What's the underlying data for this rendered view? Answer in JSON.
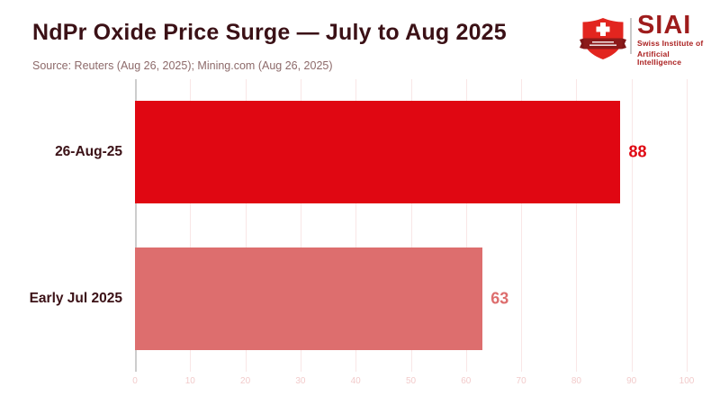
{
  "header": {
    "title": "NdPr Oxide Price Surge — July to Aug 2025",
    "source": "Source: Reuters (Aug 26, 2025); Mining.com (Aug 26, 2025)"
  },
  "logo": {
    "acronym": "SIAI",
    "subtitle_line1": "Swiss Institute of",
    "subtitle_line2": "Artificial Intelligence"
  },
  "chart_data": {
    "type": "bar",
    "orientation": "horizontal",
    "title": "NdPr Oxide Price Surge — July to Aug 2025",
    "categories": [
      "26-Aug-25",
      "Early Jul 2025"
    ],
    "values": [
      88,
      63
    ],
    "value_labels": [
      "88",
      "63"
    ],
    "bar_colors": [
      "#e00712",
      "#dd6e6e"
    ],
    "value_label_colors": [
      "#e00712",
      "#dd6e6e"
    ],
    "xlim": [
      0,
      100
    ],
    "xticks": [
      0,
      10,
      20,
      30,
      40,
      50,
      60,
      70,
      80,
      90,
      100
    ],
    "grid": true,
    "legend": "none",
    "xlabel": "",
    "ylabel": ""
  },
  "colors": {
    "background": "#ffffff",
    "title_text": "#3b1116",
    "source_text": "#8d6a6a",
    "gridline": "#f9e6e6",
    "zero_line": "#cdcdcd",
    "tick_label": "#f2cbcb",
    "logo_text": "#9e1c1c",
    "shield_red": "#e2251f",
    "ribbon_dark": "#7f1618"
  }
}
